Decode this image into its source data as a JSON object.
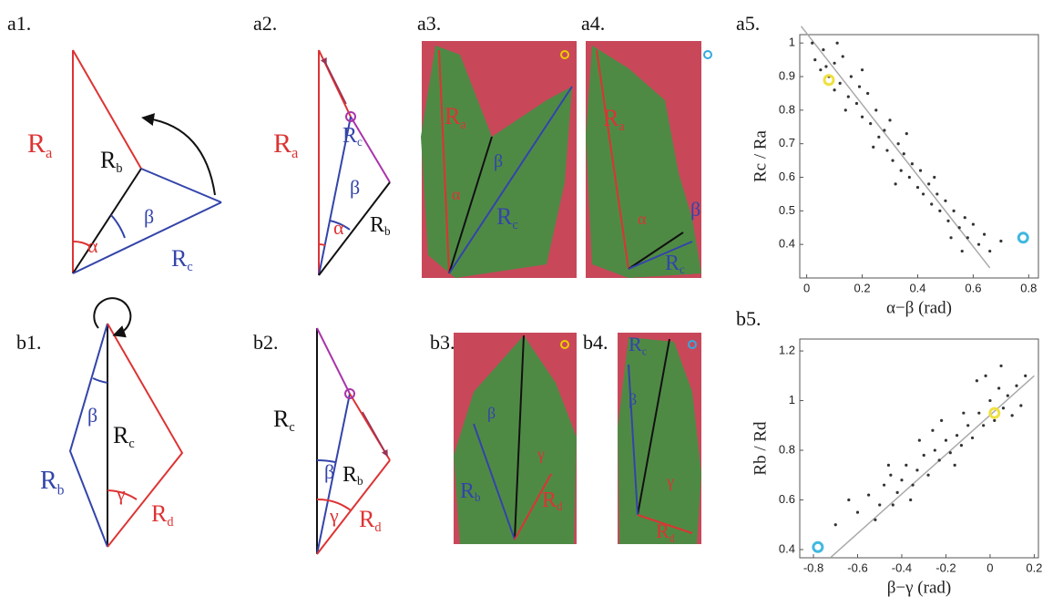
{
  "panels": {
    "a1": {
      "label": "a1.",
      "texts": [
        {
          "text": "R",
          "sub": "a"
        },
        {
          "text": "R",
          "sub": "b"
        },
        {
          "text": "R",
          "sub": "c"
        },
        {
          "text": "α"
        },
        {
          "text": "β"
        }
      ]
    },
    "a2": {
      "label": "a2.",
      "texts": [
        {
          "text": "R",
          "sub": "a"
        },
        {
          "text": "R",
          "sub": "c"
        },
        {
          "text": "β"
        },
        {
          "text": "R",
          "sub": "b"
        },
        {
          "text": "α"
        }
      ]
    },
    "a3": {
      "label": "a3.",
      "texts": [
        {
          "text": "R",
          "sub": "a"
        },
        {
          "text": "β"
        },
        {
          "text": "α"
        },
        {
          "text": "R",
          "sub": "c"
        }
      ]
    },
    "a4": {
      "label": "a4.",
      "texts": [
        {
          "text": "R",
          "sub": "a"
        },
        {
          "text": "α"
        },
        {
          "text": "β"
        },
        {
          "text": "R",
          "sub": "c"
        }
      ]
    },
    "a5": {
      "label": "a5."
    },
    "b1": {
      "label": "b1.",
      "texts": [
        {
          "text": "β"
        },
        {
          "text": "R",
          "sub": "c"
        },
        {
          "text": "R",
          "sub": "b"
        },
        {
          "text": "γ"
        },
        {
          "text": "R",
          "sub": "d"
        }
      ]
    },
    "b2": {
      "label": "b2.",
      "texts": [
        {
          "text": "R",
          "sub": "c"
        },
        {
          "text": "β"
        },
        {
          "text": "R",
          "sub": "b"
        },
        {
          "text": "γ"
        },
        {
          "text": "R",
          "sub": "d"
        }
      ]
    },
    "b3": {
      "label": "b3.",
      "texts": [
        {
          "text": "β"
        },
        {
          "text": "γ"
        },
        {
          "text": "R",
          "sub": "b"
        },
        {
          "text": "R",
          "sub": "d"
        }
      ]
    },
    "b4": {
      "label": "b4.",
      "texts": [
        {
          "text": "R",
          "sub": "c"
        },
        {
          "text": "β"
        },
        {
          "text": "γ"
        },
        {
          "text": "R",
          "sub": "d"
        }
      ]
    },
    "b5": {
      "label": "b5."
    }
  },
  "chart_data": [
    {
      "type": "scatter",
      "xlabel": "α−β (rad)",
      "ylabel": "Rc / Ra",
      "color": "#333",
      "x": [
        0.02,
        0.03,
        0.05,
        0.06,
        0.08,
        0.1,
        0.1,
        0.12,
        0.13,
        0.15,
        0.16,
        0.18,
        0.19,
        0.2,
        0.22,
        0.23,
        0.25,
        0.26,
        0.28,
        0.29,
        0.3,
        0.31,
        0.33,
        0.34,
        0.35,
        0.37,
        0.38,
        0.4,
        0.41,
        0.42,
        0.44,
        0.45,
        0.47,
        0.48,
        0.5,
        0.51,
        0.53,
        0.55,
        0.57,
        0.58,
        0.6,
        0.62,
        0.64,
        0.66,
        0.7,
        0.07,
        0.14,
        0.24,
        0.36,
        0.46,
        0.52,
        0.2,
        0.11,
        0.32,
        0.56
      ],
      "values": [
        1.0,
        0.95,
        0.92,
        0.98,
        0.9,
        0.94,
        0.86,
        0.88,
        0.96,
        0.84,
        0.9,
        0.82,
        0.87,
        0.78,
        0.85,
        0.76,
        0.8,
        0.72,
        0.74,
        0.68,
        0.77,
        0.65,
        0.7,
        0.62,
        0.67,
        0.6,
        0.64,
        0.57,
        0.62,
        0.55,
        0.58,
        0.52,
        0.55,
        0.5,
        0.53,
        0.47,
        0.5,
        0.45,
        0.48,
        0.42,
        0.46,
        0.4,
        0.43,
        0.38,
        0.41,
        0.93,
        0.8,
        0.69,
        0.73,
        0.6,
        0.42,
        0.92,
        1.0,
        0.58,
        0.38
      ],
      "highlights": [
        {
          "x": 0.08,
          "y": 0.89,
          "color": "#f0e040"
        },
        {
          "x": 0.78,
          "y": 0.42,
          "color": "#40b8e0"
        }
      ],
      "fit_line": {
        "x": [
          -0.02,
          0.66
        ],
        "y": [
          1.05,
          0.33
        ]
      },
      "xlim": [
        -0.025,
        0.835
      ],
      "ylim": [
        0.3,
        1.025
      ],
      "xticks": [
        0,
        0.2,
        0.4,
        0.6,
        0.8
      ],
      "yticks": [
        0.4,
        0.5,
        0.6,
        0.7,
        0.8,
        0.9,
        1
      ]
    },
    {
      "type": "scatter",
      "xlabel": "β−γ (rad)",
      "ylabel": "Rb / Rd",
      "color": "#333",
      "x": [
        -0.7,
        -0.6,
        -0.55,
        -0.5,
        -0.48,
        -0.45,
        -0.42,
        -0.4,
        -0.38,
        -0.35,
        -0.33,
        -0.3,
        -0.28,
        -0.25,
        -0.23,
        -0.2,
        -0.18,
        -0.15,
        -0.13,
        -0.1,
        -0.08,
        -0.05,
        -0.03,
        0,
        0.02,
        0.04,
        0.06,
        0.08,
        0.1,
        0.12,
        0.14,
        -0.02,
        -0.12,
        -0.26,
        -0.36,
        -0.46,
        -0.52,
        -0.64,
        0.16,
        0.05,
        -0.06,
        -0.16,
        -0.22,
        -0.32,
        -0.44
      ],
      "values": [
        0.5,
        0.55,
        0.62,
        0.58,
        0.66,
        0.7,
        0.63,
        0.68,
        0.74,
        0.66,
        0.72,
        0.78,
        0.7,
        0.8,
        0.76,
        0.84,
        0.79,
        0.86,
        0.82,
        0.9,
        0.85,
        0.95,
        0.9,
        1.0,
        0.92,
        1.05,
        0.97,
        1.02,
        0.94,
        1.06,
        0.98,
        1.1,
        0.95,
        0.88,
        0.6,
        0.74,
        0.52,
        0.6,
        1.1,
        1.14,
        1.08,
        0.74,
        0.92,
        0.84,
        0.58
      ],
      "highlights": [
        {
          "x": 0.02,
          "y": 0.95,
          "color": "#f0e040"
        },
        {
          "x": -0.78,
          "y": 0.41,
          "color": "#40b8e0"
        }
      ],
      "fit_line": {
        "x": [
          -0.72,
          0.2
        ],
        "y": [
          0.37,
          1.1
        ]
      },
      "xlim": [
        -0.862,
        0.219
      ],
      "ylim": [
        0.367,
        1.248
      ],
      "xticks": [
        -0.8,
        -0.6,
        -0.4,
        -0.2,
        0,
        0.2
      ],
      "yticks": [
        0.4,
        0.6,
        0.8,
        1,
        1.2
      ]
    }
  ]
}
